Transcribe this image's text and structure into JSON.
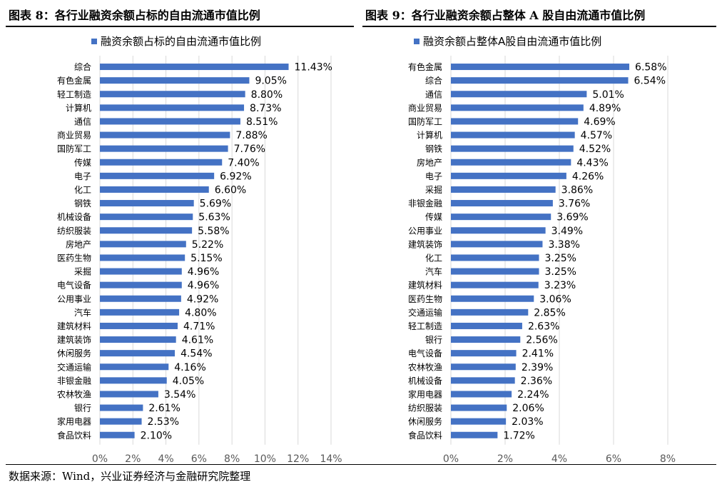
{
  "figures": {
    "left_title": "图表 8：各行业融资余额占标的自由流通市值比例",
    "right_title": "图表 9：各行业融资余额占整体 A 股自由流通市值比例"
  },
  "footer": {
    "source": "数据来源：Wind，兴业证券经济与金融研究院整理"
  },
  "colors": {
    "bar": "#4472C4",
    "grid": "#D9D9D9",
    "text": "#000000",
    "axis_text": "#595959"
  },
  "chart_data": [
    {
      "type": "bar",
      "orientation": "horizontal",
      "title": "",
      "legend": {
        "label": "融资余额占标的自由流通市值比例",
        "position": "top"
      },
      "categories": [
        "综合",
        "有色金属",
        "轻工制造",
        "计算机",
        "通信",
        "商业贸易",
        "国防军工",
        "传媒",
        "电子",
        "化工",
        "钢铁",
        "机械设备",
        "纺织服装",
        "房地产",
        "医药生物",
        "采掘",
        "电气设备",
        "公用事业",
        "汽车",
        "建筑材料",
        "建筑装饰",
        "休闲服务",
        "交通运输",
        "非银金融",
        "农林牧渔",
        "银行",
        "家用电器",
        "食品饮料"
      ],
      "values": [
        11.43,
        9.05,
        8.8,
        8.73,
        8.51,
        7.88,
        7.76,
        7.4,
        6.92,
        6.6,
        5.69,
        5.63,
        5.58,
        5.22,
        5.15,
        4.96,
        4.96,
        4.92,
        4.8,
        4.71,
        4.61,
        4.54,
        4.16,
        4.05,
        3.54,
        2.61,
        2.53,
        2.1
      ],
      "data_labels": [
        "11.43%",
        "9.05%",
        "8.80%",
        "8.73%",
        "8.51%",
        "7.88%",
        "7.76%",
        "7.40%",
        "6.92%",
        "6.60%",
        "5.69%",
        "5.63%",
        "5.58%",
        "5.22%",
        "5.15%",
        "4.96%",
        "4.96%",
        "4.92%",
        "4.80%",
        "4.71%",
        "4.61%",
        "4.54%",
        "4.16%",
        "4.05%",
        "3.54%",
        "2.61%",
        "2.53%",
        "2.10%"
      ],
      "xlim": [
        0,
        14
      ],
      "xticks": [
        0,
        2,
        4,
        6,
        8,
        10,
        12,
        14
      ],
      "xtick_labels": [
        "0%",
        "2%",
        "4%",
        "6%",
        "8%",
        "10%",
        "12%",
        "14%"
      ],
      "grid": "vertical"
    },
    {
      "type": "bar",
      "orientation": "horizontal",
      "title": "",
      "legend": {
        "label": "融资余额占整体A股自由流通市值比例",
        "position": "top"
      },
      "categories": [
        "有色金属",
        "综合",
        "通信",
        "商业贸易",
        "国防军工",
        "计算机",
        "钢铁",
        "房地产",
        "电子",
        "采掘",
        "非银金融",
        "传媒",
        "公用事业",
        "建筑装饰",
        "化工",
        "汽车",
        "建筑材料",
        "医药生物",
        "交通运输",
        "轻工制造",
        "银行",
        "电气设备",
        "农林牧渔",
        "机械设备",
        "家用电器",
        "纺织服装",
        "休闲服务",
        "食品饮料"
      ],
      "values": [
        6.58,
        6.54,
        5.01,
        4.89,
        4.69,
        4.57,
        4.52,
        4.43,
        4.26,
        3.86,
        3.76,
        3.69,
        3.49,
        3.38,
        3.25,
        3.25,
        3.23,
        3.06,
        2.85,
        2.63,
        2.56,
        2.41,
        2.39,
        2.36,
        2.24,
        2.06,
        2.03,
        1.72
      ],
      "data_labels": [
        "6.58%",
        "6.54%",
        "5.01%",
        "4.89%",
        "4.69%",
        "4.57%",
        "4.52%",
        "4.43%",
        "4.26%",
        "3.86%",
        "3.76%",
        "3.69%",
        "3.49%",
        "3.38%",
        "3.25%",
        "3.25%",
        "3.23%",
        "3.06%",
        "2.85%",
        "2.63%",
        "2.56%",
        "2.41%",
        "2.39%",
        "2.36%",
        "2.24%",
        "2.06%",
        "2.03%",
        "1.72%"
      ],
      "xlim": [
        0,
        8
      ],
      "xticks": [
        0,
        2,
        4,
        6,
        8
      ],
      "xtick_labels": [
        "0%",
        "2%",
        "4%",
        "6%",
        "8%"
      ],
      "grid": "vertical"
    }
  ]
}
